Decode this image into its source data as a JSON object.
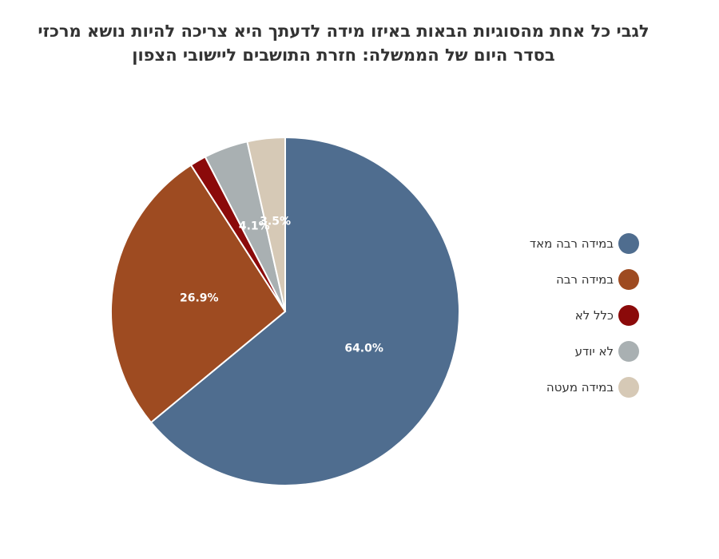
{
  "chart_data": {
    "type": "pie",
    "title_lines": [
      "לגבי כל אחת מהסוגיות הבאות באיזו מידה לדעתך היא צריכה להיות נושא מרכזי",
      "בסדר היום של הממשלה: חזרת התושבים ליישובי הצפון"
    ],
    "slices": [
      {
        "label": "במידה רבה מאד",
        "value": 64.0,
        "value_label": "64.0%",
        "color": "#4f6d8f"
      },
      {
        "label": "במידה רבה",
        "value": 26.9,
        "value_label": "26.9%",
        "color": "#9e4b21"
      },
      {
        "label": "כלל לא",
        "value": 1.5,
        "value_label": "",
        "color": "#8b0a0a"
      },
      {
        "label": "לא יודע",
        "value": 4.1,
        "value_label": "4.1%",
        "color": "#a9b0b2"
      },
      {
        "label": "במידה מעטה",
        "value": 3.5,
        "value_label": "3.5%",
        "color": "#d6c9b6"
      }
    ],
    "legend_position": "right"
  }
}
